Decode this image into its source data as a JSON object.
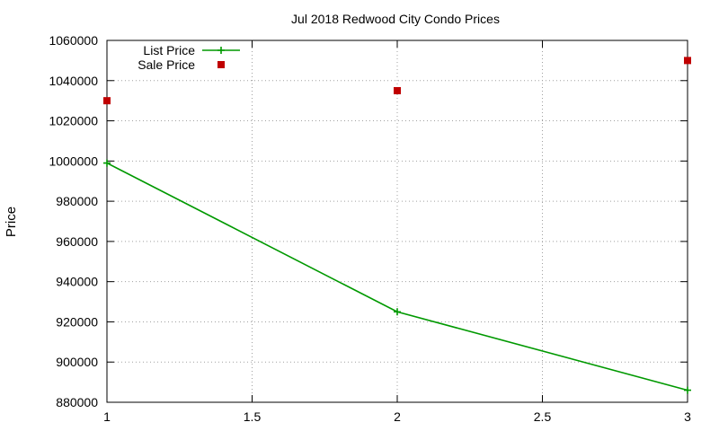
{
  "chart_data": {
    "type": "line",
    "title": "Jul 2018 Redwood City Condo Prices",
    "xlabel": "",
    "ylabel": "Price",
    "xlim": [
      1,
      3
    ],
    "ylim": [
      880000,
      1060000
    ],
    "xticks": [
      1,
      1.5,
      2,
      2.5,
      3
    ],
    "xtick_labels": [
      "1",
      "1.5",
      "2",
      "2.5",
      "3"
    ],
    "yticks": [
      880000,
      900000,
      920000,
      940000,
      960000,
      980000,
      1000000,
      1020000,
      1040000,
      1060000
    ],
    "ytick_labels": [
      "880000",
      "900000",
      "920000",
      "940000",
      "960000",
      "980000",
      "1000000",
      "1020000",
      "1040000",
      "1060000"
    ],
    "grid": true,
    "legend_position": "top-left",
    "series": [
      {
        "name": "List Price",
        "style": "line-plus",
        "color": "#009900",
        "x": [
          1,
          2,
          3
        ],
        "y": [
          999000,
          925000,
          886000
        ]
      },
      {
        "name": "Sale Price",
        "style": "square-points",
        "color": "#c00000",
        "x": [
          1,
          2,
          3
        ],
        "y": [
          1030000,
          1035000,
          1050000
        ]
      }
    ]
  }
}
